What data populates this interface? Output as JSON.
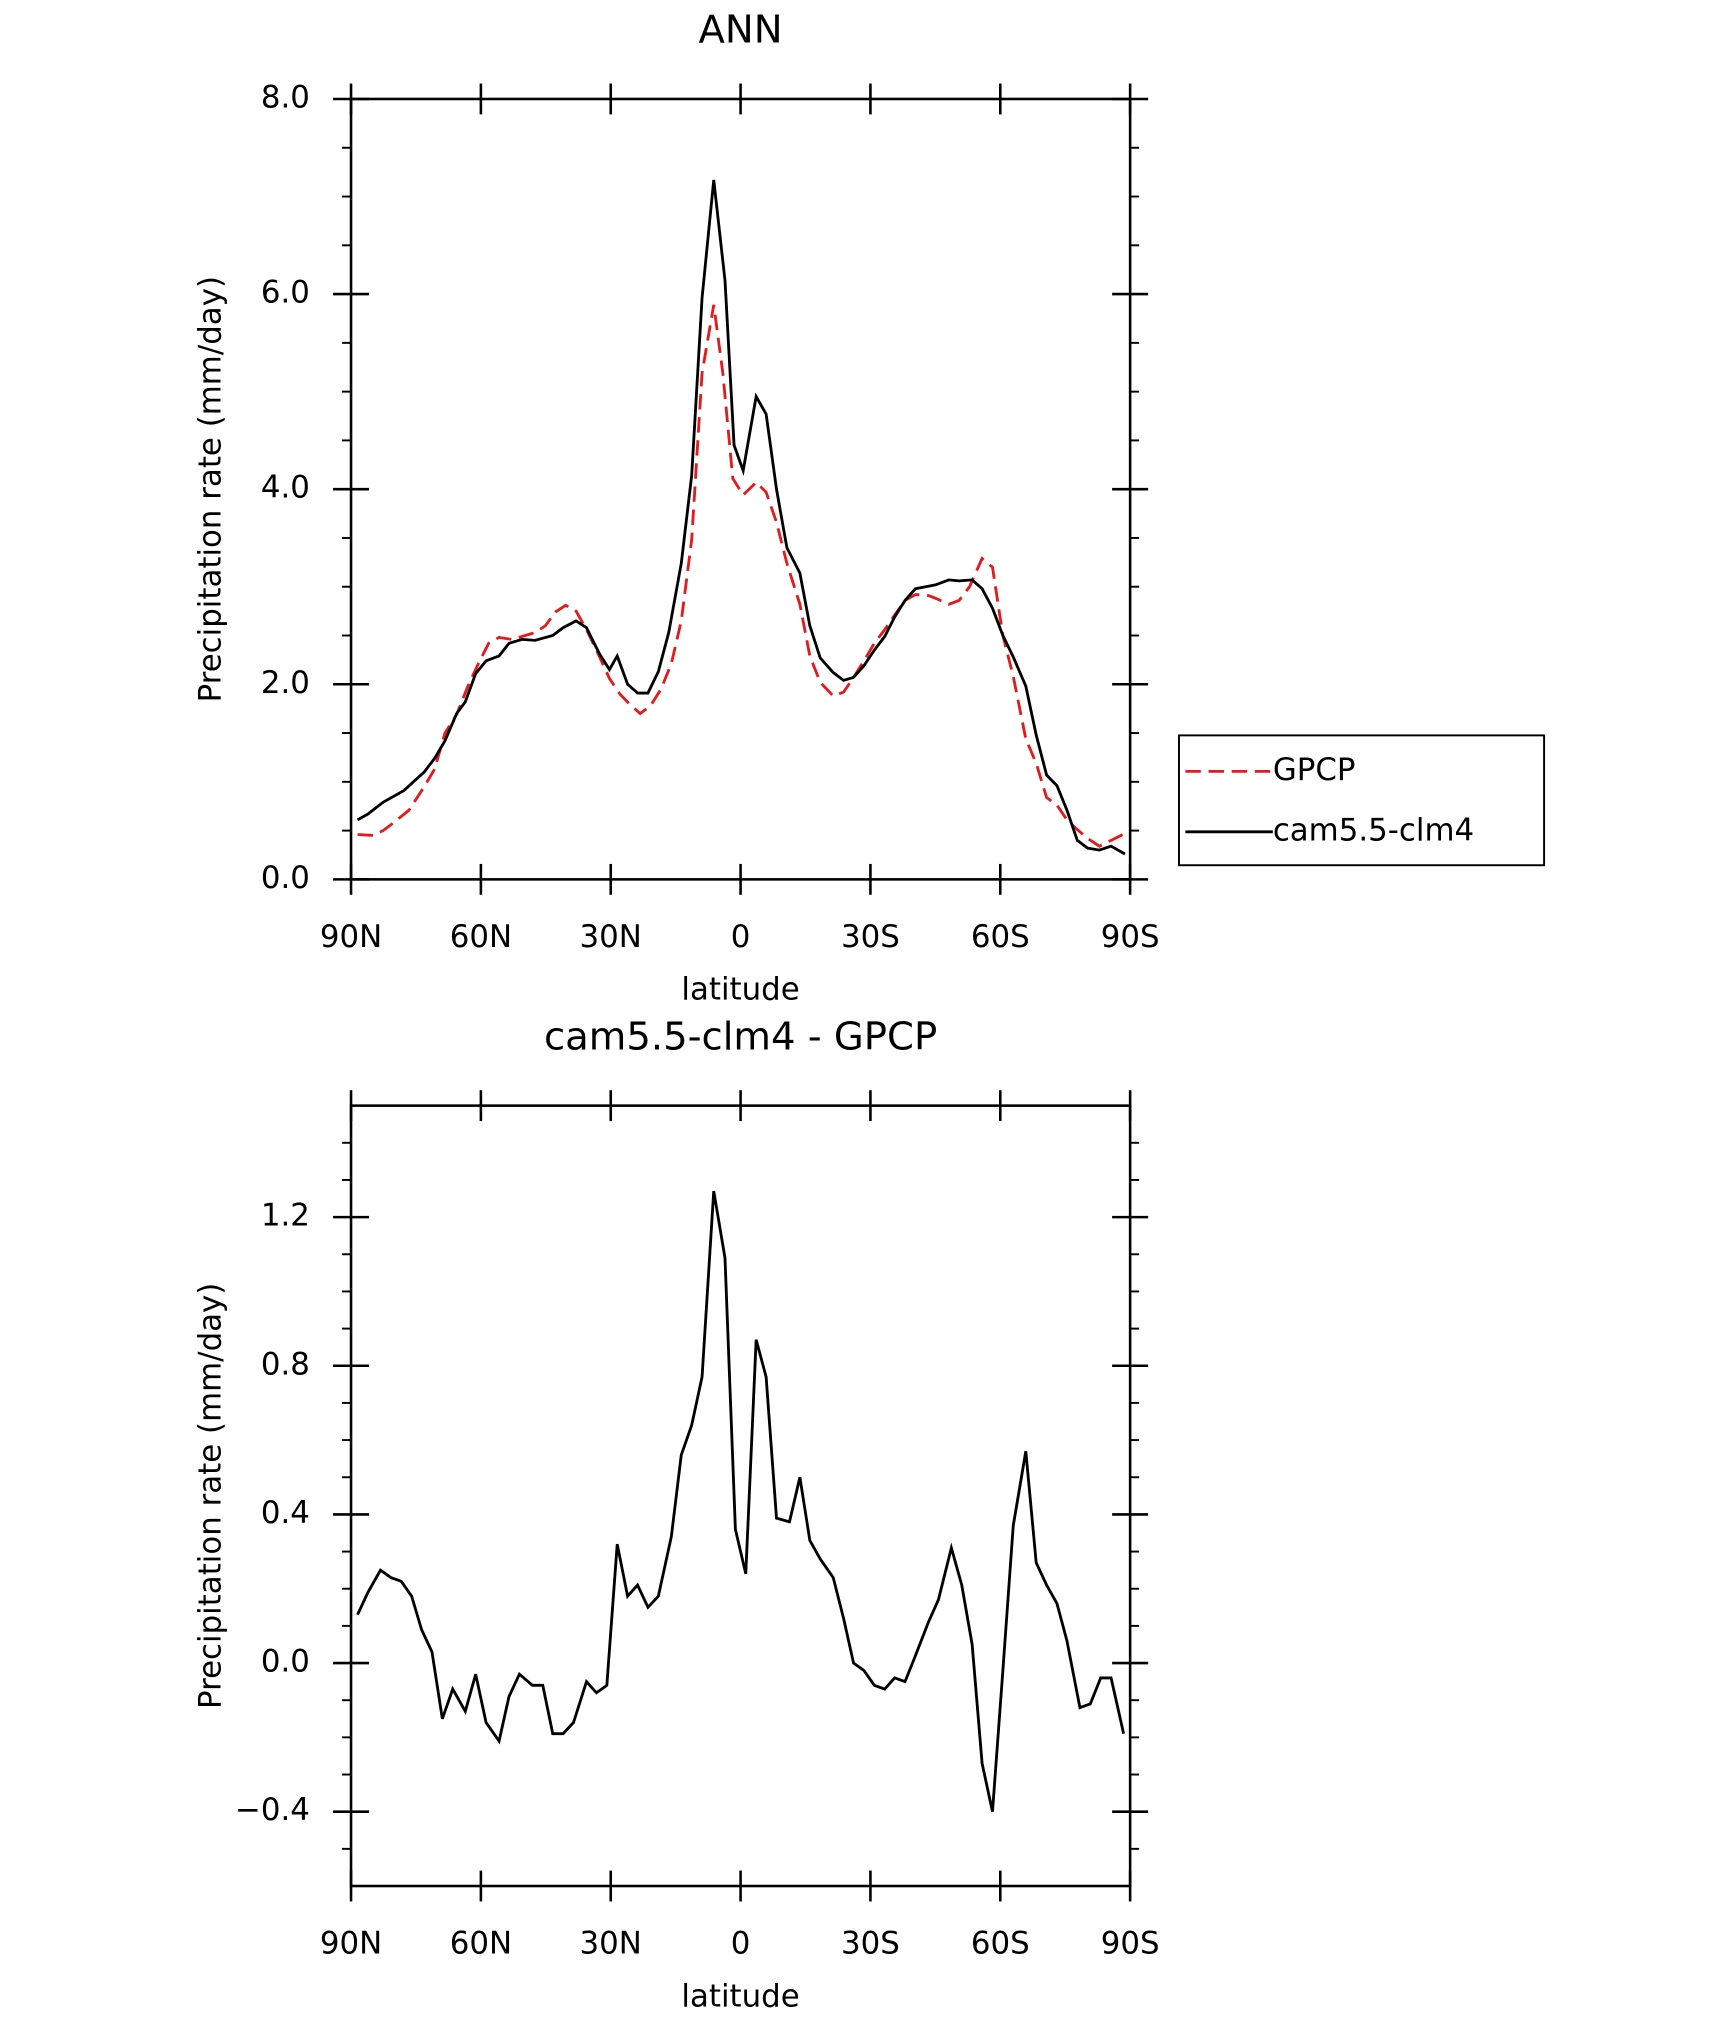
{
  "chart_data": [
    {
      "type": "line",
      "title": "ANN",
      "xlabel": "latitude",
      "ylabel": "Precipitation rate (mm/day)",
      "xlim": [
        90,
        -90
      ],
      "xticks": [
        {
          "value": 90,
          "label": "90N"
        },
        {
          "value": 60,
          "label": "60N"
        },
        {
          "value": 30,
          "label": "30N"
        },
        0,
        {
          "value": -30,
          "label": "30S"
        },
        {
          "value": -60,
          "label": "60S"
        },
        {
          "value": -90,
          "label": "90S"
        }
      ],
      "ylim": [
        0,
        8
      ],
      "yticks": [
        {
          "value": 0,
          "label": "0.0"
        },
        {
          "value": 2,
          "label": "2.0"
        },
        {
          "value": 4,
          "label": "4.0"
        },
        {
          "value": 6,
          "label": "6.0"
        },
        {
          "value": 8,
          "label": "8.0"
        }
      ],
      "yminorticks": [
        0.5,
        1,
        1.5,
        2.5,
        3,
        3.5,
        4.5,
        5,
        5.5,
        6.5,
        7,
        7.5
      ],
      "legend": "right",
      "series": [
        {
          "name": "GPCP",
          "color": "#e41a1c",
          "dash": true,
          "x": [
            88.5,
            84.9,
            82.6,
            80.2,
            76.6,
            73.1,
            70.7,
            68.3,
            65.6,
            63.0,
            60.6,
            58.2,
            55.8,
            52.9,
            50.5,
            47.5,
            45.1,
            42.8,
            40.4,
            38.0,
            35.6,
            33.3,
            30.3,
            27.9,
            25.5,
            23.2,
            20.8,
            18.4,
            16.0,
            13.7,
            11.3,
            8.9,
            6.2,
            4.1,
            1.8,
            -0.6,
            -3.6,
            -5.9,
            -8.3,
            -10.7,
            -13.7,
            -16.0,
            -18.4,
            -21.4,
            -23.8,
            -26.1,
            -28.5,
            -30.9,
            -33.3,
            -35.6,
            -38.0,
            -40.4,
            -43.4,
            -45.7,
            -48.1,
            -50.5,
            -52.9,
            -55.8,
            -58.2,
            -60.6,
            -63.0,
            -65.9,
            -68.3,
            -70.7,
            -73.1,
            -75.4,
            -77.8,
            -80.2,
            -82.9,
            -85.6,
            -88.8
          ],
          "values": [
            0.46,
            0.45,
            0.5,
            0.58,
            0.71,
            0.95,
            1.13,
            1.5,
            1.69,
            1.98,
            2.21,
            2.42,
            2.48,
            2.46,
            2.49,
            2.53,
            2.6,
            2.74,
            2.81,
            2.75,
            2.56,
            2.35,
            2.06,
            1.9,
            1.79,
            1.7,
            1.78,
            1.95,
            2.21,
            2.65,
            3.48,
            5.19,
            5.89,
            5.19,
            4.11,
            3.94,
            4.07,
            3.97,
            3.66,
            3.24,
            2.82,
            2.29,
            2.02,
            1.88,
            1.92,
            2.07,
            2.24,
            2.42,
            2.56,
            2.71,
            2.86,
            2.92,
            2.91,
            2.87,
            2.82,
            2.86,
            3.0,
            3.29,
            3.2,
            2.5,
            2.08,
            1.44,
            1.19,
            0.84,
            0.76,
            0.61,
            0.51,
            0.42,
            0.34,
            0.4,
            0.47
          ]
        },
        {
          "name": "cam5.5-clm4",
          "color": "#000000",
          "dash": false,
          "x": [
            88.5,
            86.1,
            82.6,
            77.8,
            73.1,
            70.7,
            68.3,
            65.6,
            63.6,
            61.2,
            58.8,
            55.8,
            53.5,
            50.5,
            47.5,
            43.4,
            41.0,
            38.0,
            35.6,
            32.7,
            30.3,
            28.5,
            26.1,
            23.8,
            21.4,
            19.0,
            16.6,
            13.7,
            11.3,
            8.9,
            6.2,
            3.6,
            1.5,
            -0.6,
            -3.6,
            -5.9,
            -8.3,
            -10.7,
            -13.7,
            -16.0,
            -18.4,
            -21.4,
            -23.8,
            -26.1,
            -28.5,
            -30.9,
            -33.3,
            -35.6,
            -38.0,
            -40.4,
            -42.8,
            -45.1,
            -48.1,
            -50.5,
            -53.5,
            -55.8,
            -58.2,
            -60.6,
            -63.0,
            -65.9,
            -68.3,
            -70.7,
            -73.1,
            -75.4,
            -77.8,
            -80.2,
            -82.9,
            -85.6,
            -88.8
          ],
          "values": [
            0.61,
            0.67,
            0.79,
            0.91,
            1.1,
            1.24,
            1.42,
            1.7,
            1.82,
            2.11,
            2.24,
            2.29,
            2.42,
            2.46,
            2.45,
            2.5,
            2.58,
            2.65,
            2.58,
            2.32,
            2.15,
            2.29,
            2.0,
            1.91,
            1.91,
            2.13,
            2.53,
            3.24,
            4.14,
            5.96,
            7.17,
            6.14,
            4.45,
            4.19,
            4.95,
            4.77,
            4.0,
            3.4,
            3.14,
            2.6,
            2.27,
            2.12,
            2.04,
            2.07,
            2.19,
            2.35,
            2.49,
            2.69,
            2.86,
            2.98,
            3.0,
            3.02,
            3.07,
            3.06,
            3.07,
            2.98,
            2.78,
            2.5,
            2.28,
            1.98,
            1.48,
            1.07,
            0.96,
            0.71,
            0.4,
            0.32,
            0.3,
            0.34,
            0.26
          ]
        }
      ]
    },
    {
      "type": "line",
      "title": "cam5.5-clm4 - GPCP",
      "xlabel": "latitude",
      "ylabel": "Precipitation rate (mm/day)",
      "xlim": [
        90,
        -90
      ],
      "xticks": [
        {
          "value": 90,
          "label": "90N"
        },
        {
          "value": 60,
          "label": "60N"
        },
        {
          "value": 30,
          "label": "30N"
        },
        0,
        {
          "value": -30,
          "label": "30S"
        },
        {
          "value": -60,
          "label": "60S"
        },
        {
          "value": -90,
          "label": "90S"
        }
      ],
      "ylim": [
        -0.6,
        1.5
      ],
      "yticks": [
        {
          "value": -0.4,
          "label": "−0.4"
        },
        {
          "value": 0,
          "label": "0.0"
        },
        {
          "value": 0.4,
          "label": "0.4"
        },
        {
          "value": 0.8,
          "label": "0.8"
        },
        {
          "value": 1.2,
          "label": "1.2"
        }
      ],
      "yminorticks": [
        -0.5,
        -0.3,
        -0.2,
        -0.1,
        0.1,
        0.2,
        0.3,
        0.5,
        0.6,
        0.7,
        0.9,
        1.0,
        1.1,
        1.3,
        1.4
      ],
      "series": [
        {
          "color": "#000000",
          "dash": false,
          "x": [
            88.5,
            86.1,
            83.2,
            80.8,
            78.4,
            76.0,
            73.7,
            71.3,
            68.9,
            66.5,
            63.6,
            61.2,
            58.8,
            55.8,
            53.5,
            51.1,
            48.1,
            45.7,
            43.4,
            41.0,
            38.6,
            35.6,
            33.3,
            30.9,
            28.5,
            26.1,
            23.8,
            21.4,
            19.0,
            16.0,
            13.7,
            11.3,
            8.9,
            6.2,
            3.6,
            1.2,
            -1.2,
            -3.6,
            -5.9,
            -8.3,
            -11.3,
            -13.7,
            -16.0,
            -18.4,
            -21.4,
            -23.8,
            -26.1,
            -28.5,
            -30.9,
            -33.3,
            -35.6,
            -38.0,
            -40.4,
            -43.4,
            -45.7,
            -48.7,
            -51.1,
            -53.5,
            -55.8,
            -58.2,
            -60.6,
            -63.0,
            -65.9,
            -68.3,
            -70.7,
            -73.1,
            -75.4,
            -78.4,
            -80.8,
            -83.2,
            -85.6,
            -88.5
          ],
          "values": [
            0.13,
            0.19,
            0.25,
            0.23,
            0.22,
            0.18,
            0.09,
            0.03,
            -0.15,
            -0.07,
            -0.13,
            -0.03,
            -0.16,
            -0.21,
            -0.09,
            -0.03,
            -0.06,
            -0.06,
            -0.19,
            -0.19,
            -0.16,
            -0.05,
            -0.08,
            -0.06,
            0.32,
            0.18,
            0.21,
            0.15,
            0.18,
            0.34,
            0.56,
            0.64,
            0.77,
            1.27,
            1.09,
            0.36,
            0.24,
            0.87,
            0.77,
            0.39,
            0.38,
            0.5,
            0.33,
            0.28,
            0.23,
            0.12,
            0.0,
            -0.02,
            -0.06,
            -0.07,
            -0.04,
            -0.05,
            0.02,
            0.11,
            0.17,
            0.31,
            0.21,
            0.05,
            -0.27,
            -0.4,
            -0.02,
            0.37,
            0.57,
            0.27,
            0.21,
            0.16,
            0.06,
            -0.12,
            -0.11,
            -0.04,
            -0.04,
            -0.19
          ]
        }
      ]
    }
  ]
}
